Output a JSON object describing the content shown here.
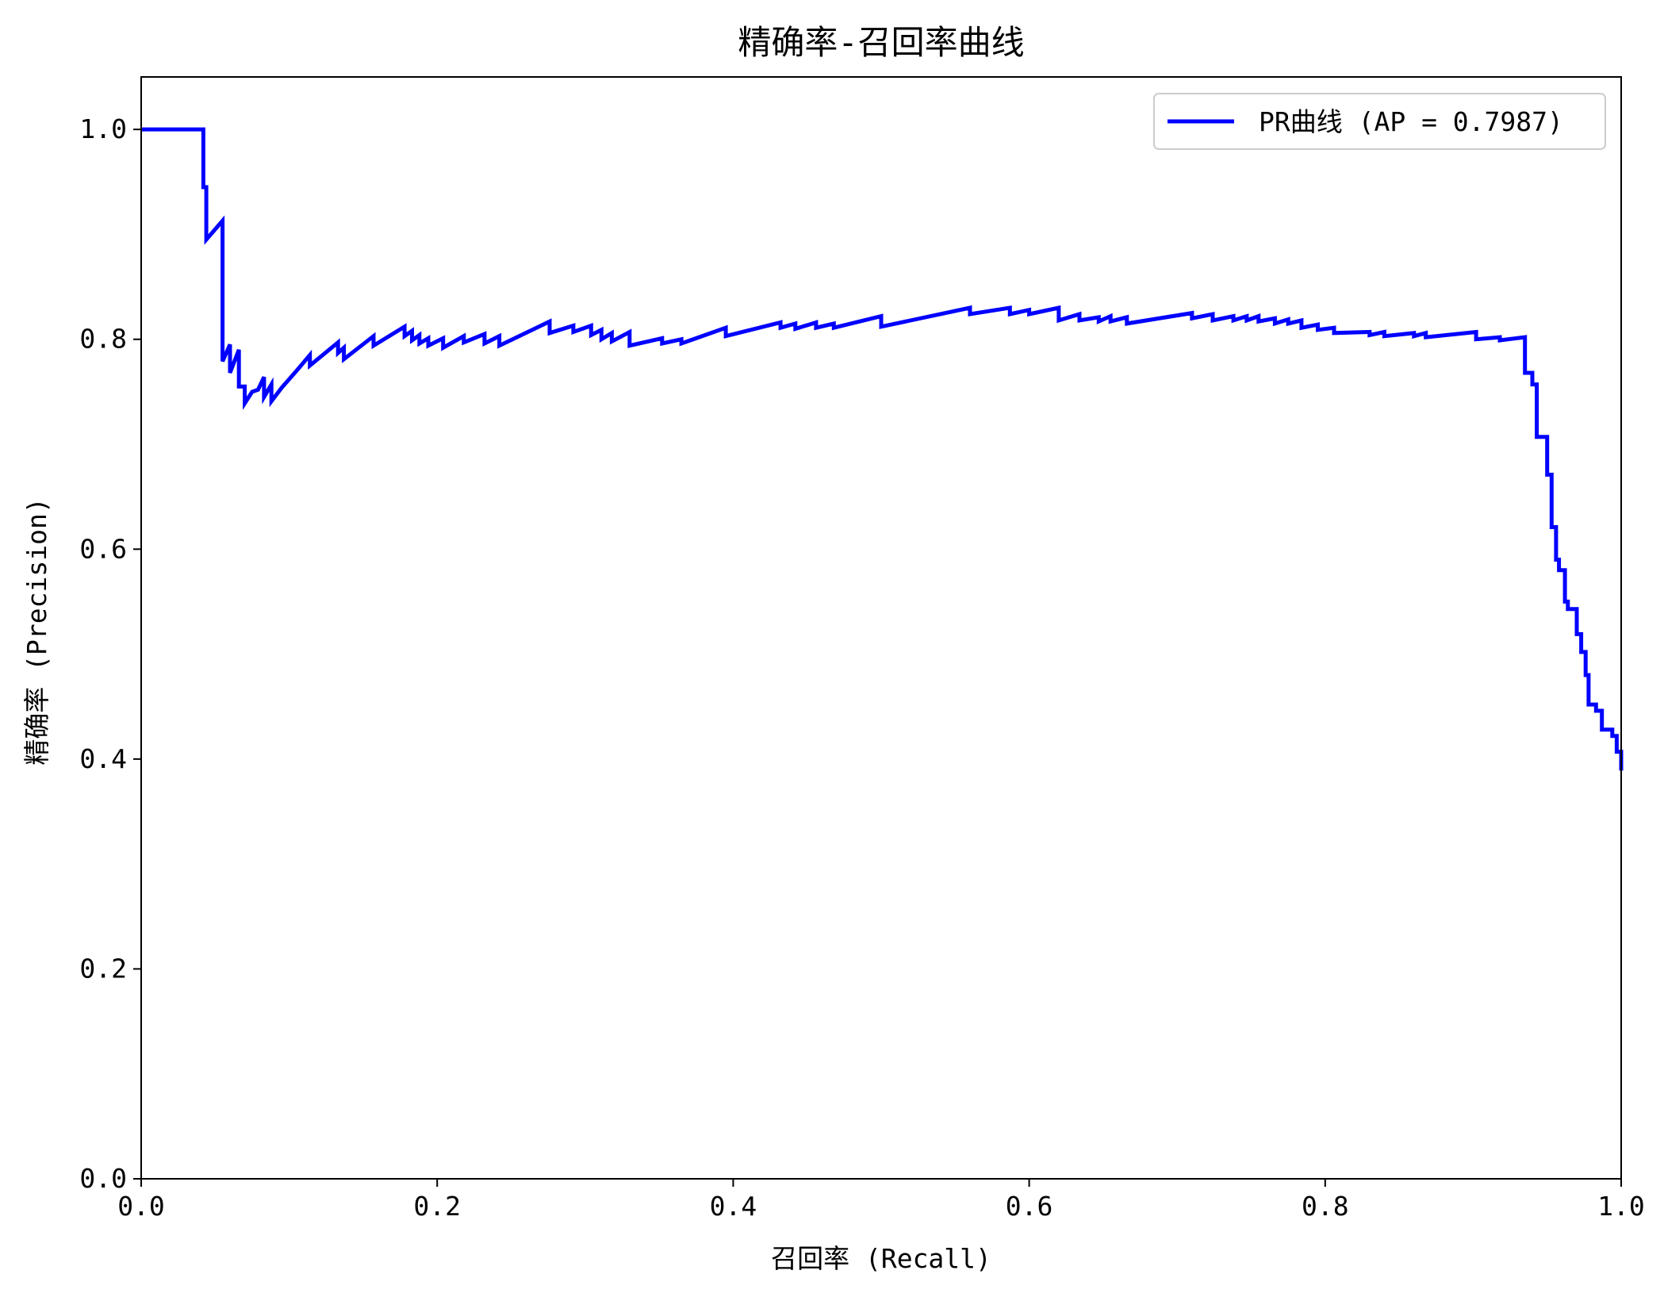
{
  "chart_data": {
    "type": "line",
    "title": "精确率-召回率曲线",
    "xlabel": "召回率 (Recall)",
    "ylabel": "精确率 (Precision)",
    "xlim": [
      0,
      1
    ],
    "ylim": [
      0,
      1.05
    ],
    "xticks": [
      0.0,
      0.2,
      0.4,
      0.6,
      0.8,
      1.0
    ],
    "xtick_labels": [
      "0.0",
      "0.2",
      "0.4",
      "0.6",
      "0.8",
      "1.0"
    ],
    "yticks": [
      0.0,
      0.2,
      0.4,
      0.6,
      0.8,
      1.0
    ],
    "ytick_labels": [
      "0.0",
      "0.2",
      "0.4",
      "0.6",
      "0.8",
      "1.0"
    ],
    "grid": false,
    "legend_position": "top-right",
    "series": [
      {
        "name": "PR曲线 (AP = 0.7987)",
        "color": "#0000ff",
        "points": [
          [
            0.0,
            1.0
          ],
          [
            0.042,
            1.0
          ],
          [
            0.042,
            0.945
          ],
          [
            0.044,
            0.945
          ],
          [
            0.044,
            0.895
          ],
          [
            0.055,
            0.913
          ],
          [
            0.055,
            0.779
          ],
          [
            0.06,
            0.795
          ],
          [
            0.06,
            0.768
          ],
          [
            0.066,
            0.79
          ],
          [
            0.066,
            0.755
          ],
          [
            0.07,
            0.755
          ],
          [
            0.07,
            0.739
          ],
          [
            0.075,
            0.75
          ],
          [
            0.079,
            0.752
          ],
          [
            0.083,
            0.764
          ],
          [
            0.083,
            0.745
          ],
          [
            0.088,
            0.757
          ],
          [
            0.088,
            0.741
          ],
          [
            0.095,
            0.754
          ],
          [
            0.105,
            0.77
          ],
          [
            0.114,
            0.785
          ],
          [
            0.114,
            0.775
          ],
          [
            0.133,
            0.797
          ],
          [
            0.133,
            0.787
          ],
          [
            0.137,
            0.792
          ],
          [
            0.137,
            0.781
          ],
          [
            0.157,
            0.803
          ],
          [
            0.157,
            0.794
          ],
          [
            0.178,
            0.812
          ],
          [
            0.178,
            0.803
          ],
          [
            0.183,
            0.808
          ],
          [
            0.183,
            0.799
          ],
          [
            0.188,
            0.804
          ],
          [
            0.188,
            0.796
          ],
          [
            0.194,
            0.801
          ],
          [
            0.194,
            0.794
          ],
          [
            0.204,
            0.801
          ],
          [
            0.204,
            0.792
          ],
          [
            0.218,
            0.803
          ],
          [
            0.218,
            0.797
          ],
          [
            0.232,
            0.805
          ],
          [
            0.232,
            0.796
          ],
          [
            0.242,
            0.803
          ],
          [
            0.242,
            0.794
          ],
          [
            0.276,
            0.817
          ],
          [
            0.276,
            0.806
          ],
          [
            0.292,
            0.813
          ],
          [
            0.292,
            0.807
          ],
          [
            0.304,
            0.813
          ],
          [
            0.304,
            0.804
          ],
          [
            0.311,
            0.809
          ],
          [
            0.311,
            0.8
          ],
          [
            0.318,
            0.806
          ],
          [
            0.318,
            0.798
          ],
          [
            0.33,
            0.807
          ],
          [
            0.33,
            0.794
          ],
          [
            0.352,
            0.801
          ],
          [
            0.352,
            0.796
          ],
          [
            0.365,
            0.8
          ],
          [
            0.365,
            0.796
          ],
          [
            0.395,
            0.811
          ],
          [
            0.395,
            0.803
          ],
          [
            0.432,
            0.816
          ],
          [
            0.432,
            0.811
          ],
          [
            0.442,
            0.815
          ],
          [
            0.442,
            0.81
          ],
          [
            0.456,
            0.816
          ],
          [
            0.456,
            0.811
          ],
          [
            0.468,
            0.815
          ],
          [
            0.468,
            0.811
          ],
          [
            0.5,
            0.822
          ],
          [
            0.5,
            0.812
          ],
          [
            0.56,
            0.83
          ],
          [
            0.56,
            0.824
          ],
          [
            0.587,
            0.83
          ],
          [
            0.587,
            0.824
          ],
          [
            0.6,
            0.828
          ],
          [
            0.6,
            0.824
          ],
          [
            0.62,
            0.83
          ],
          [
            0.62,
            0.818
          ],
          [
            0.634,
            0.824
          ],
          [
            0.634,
            0.818
          ],
          [
            0.647,
            0.821
          ],
          [
            0.647,
            0.817
          ],
          [
            0.655,
            0.822
          ],
          [
            0.655,
            0.817
          ],
          [
            0.666,
            0.821
          ],
          [
            0.666,
            0.815
          ],
          [
            0.71,
            0.825
          ],
          [
            0.71,
            0.82
          ],
          [
            0.724,
            0.824
          ],
          [
            0.724,
            0.818
          ],
          [
            0.738,
            0.822
          ],
          [
            0.738,
            0.818
          ],
          [
            0.747,
            0.822
          ],
          [
            0.747,
            0.818
          ],
          [
            0.755,
            0.822
          ],
          [
            0.755,
            0.817
          ],
          [
            0.766,
            0.82
          ],
          [
            0.766,
            0.815
          ],
          [
            0.775,
            0.819
          ],
          [
            0.775,
            0.815
          ],
          [
            0.784,
            0.818
          ],
          [
            0.784,
            0.811
          ],
          [
            0.795,
            0.814
          ],
          [
            0.795,
            0.809
          ],
          [
            0.806,
            0.811
          ],
          [
            0.806,
            0.806
          ],
          [
            0.83,
            0.807
          ],
          [
            0.83,
            0.804
          ],
          [
            0.84,
            0.807
          ],
          [
            0.84,
            0.803
          ],
          [
            0.86,
            0.806
          ],
          [
            0.86,
            0.803
          ],
          [
            0.868,
            0.806
          ],
          [
            0.868,
            0.802
          ],
          [
            0.902,
            0.807
          ],
          [
            0.902,
            0.8
          ],
          [
            0.918,
            0.802
          ],
          [
            0.918,
            0.799
          ],
          [
            0.935,
            0.802
          ],
          [
            0.935,
            0.768
          ],
          [
            0.94,
            0.768
          ],
          [
            0.94,
            0.757
          ],
          [
            0.943,
            0.757
          ],
          [
            0.943,
            0.707
          ],
          [
            0.95,
            0.707
          ],
          [
            0.95,
            0.671
          ],
          [
            0.953,
            0.671
          ],
          [
            0.953,
            0.621
          ],
          [
            0.956,
            0.621
          ],
          [
            0.956,
            0.59
          ],
          [
            0.958,
            0.59
          ],
          [
            0.958,
            0.58
          ],
          [
            0.962,
            0.58
          ],
          [
            0.962,
            0.55
          ],
          [
            0.964,
            0.55
          ],
          [
            0.964,
            0.543
          ],
          [
            0.97,
            0.543
          ],
          [
            0.97,
            0.519
          ],
          [
            0.973,
            0.519
          ],
          [
            0.973,
            0.502
          ],
          [
            0.976,
            0.502
          ],
          [
            0.976,
            0.48
          ],
          [
            0.978,
            0.48
          ],
          [
            0.978,
            0.452
          ],
          [
            0.983,
            0.452
          ],
          [
            0.983,
            0.446
          ],
          [
            0.987,
            0.446
          ],
          [
            0.987,
            0.428
          ],
          [
            0.994,
            0.428
          ],
          [
            0.994,
            0.422
          ],
          [
            0.997,
            0.422
          ],
          [
            0.997,
            0.407
          ],
          [
            1.0,
            0.407
          ],
          [
            1.0,
            0.389
          ]
        ]
      }
    ]
  }
}
